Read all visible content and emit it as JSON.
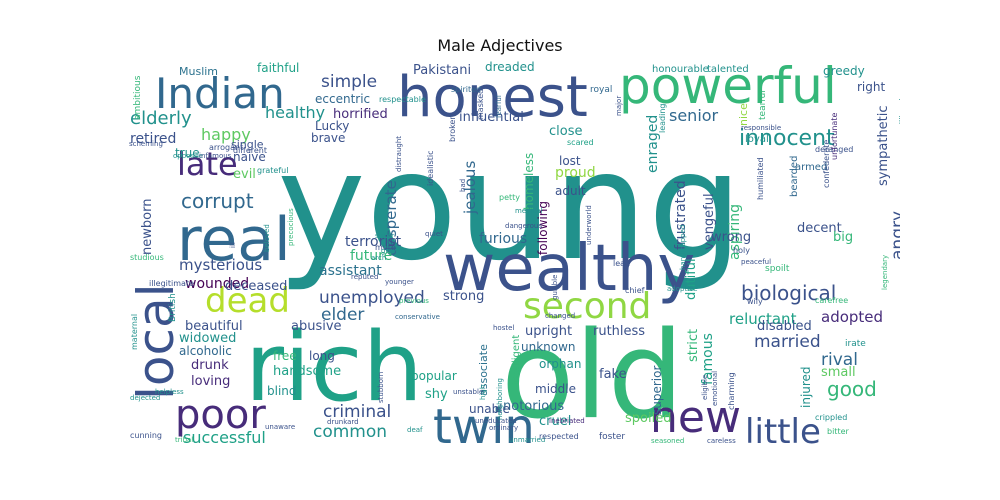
{
  "title": "Male Adjectives",
  "palette": {
    "dark_purple": "#440154",
    "purple": "#472c7a",
    "indigo": "#3b528b",
    "blue": "#31688e",
    "teal_blue": "#2c728e",
    "teal": "#21918c",
    "sea_green": "#1fa187",
    "green": "#35b779",
    "light_green": "#5ec962",
    "lime": "#90d743",
    "yellow_green": "#b5de2b"
  },
  "words": [
    {
      "text": "young",
      "color": "teal"
    },
    {
      "text": "old",
      "color": "green"
    },
    {
      "text": "rich",
      "color": "sea_green"
    },
    {
      "text": "wealthy",
      "color": "indigo"
    },
    {
      "text": "honest",
      "color": "indigo"
    },
    {
      "text": "powerful",
      "color": "green"
    },
    {
      "text": "real",
      "color": "blue"
    },
    {
      "text": "Indian",
      "color": "blue"
    },
    {
      "text": "local",
      "color": "indigo"
    },
    {
      "text": "twin",
      "color": "blue"
    },
    {
      "text": "new",
      "color": "purple"
    },
    {
      "text": "poor",
      "color": "purple"
    },
    {
      "text": "second",
      "color": "lime"
    },
    {
      "text": "dead",
      "color": "yellow_green"
    },
    {
      "text": "little",
      "color": "indigo"
    },
    {
      "text": "late",
      "color": "purple"
    },
    {
      "text": "innocent",
      "color": "teal"
    },
    {
      "text": "biological",
      "color": "indigo"
    },
    {
      "text": "elderly",
      "color": "teal"
    },
    {
      "text": "corrupt",
      "color": "blue"
    },
    {
      "text": "unemployed",
      "color": "indigo"
    },
    {
      "text": "criminal",
      "color": "indigo"
    },
    {
      "text": "common",
      "color": "teal"
    },
    {
      "text": "successful",
      "color": "sea_green"
    },
    {
      "text": "married",
      "color": "indigo"
    },
    {
      "text": "good",
      "color": "green"
    },
    {
      "text": "rival",
      "color": "blue"
    },
    {
      "text": "angry",
      "color": "indigo"
    },
    {
      "text": "senior",
      "color": "blue"
    },
    {
      "text": "simple",
      "color": "indigo"
    },
    {
      "text": "healthy",
      "color": "teal"
    },
    {
      "text": "happy",
      "color": "light_green"
    },
    {
      "text": "retired",
      "color": "indigo"
    },
    {
      "text": "elder",
      "color": "blue"
    },
    {
      "text": "desperate",
      "color": "blue"
    },
    {
      "text": "jealous",
      "color": "blue"
    },
    {
      "text": "terrorist",
      "color": "indigo"
    },
    {
      "text": "furious",
      "color": "blue"
    },
    {
      "text": "assistant",
      "color": "teal_blue"
    },
    {
      "text": "mysterious",
      "color": "indigo"
    },
    {
      "text": "future",
      "color": "green"
    },
    {
      "text": "wounded",
      "color": "dark_purple"
    },
    {
      "text": "deceased",
      "color": "indigo"
    },
    {
      "text": "beautiful",
      "color": "indigo"
    },
    {
      "text": "abusive",
      "color": "indigo"
    },
    {
      "text": "strong",
      "color": "indigo"
    },
    {
      "text": "upright",
      "color": "indigo"
    },
    {
      "text": "ruthless",
      "color": "indigo"
    },
    {
      "text": "adopted",
      "color": "purple"
    },
    {
      "text": "reluctant",
      "color": "sea_green"
    },
    {
      "text": "disabled",
      "color": "indigo"
    },
    {
      "text": "famous",
      "color": "sea_green"
    },
    {
      "text": "strict",
      "color": "green"
    },
    {
      "text": "frustrated",
      "color": "indigo"
    },
    {
      "text": "enraged",
      "color": "teal"
    },
    {
      "text": "vengeful",
      "color": "indigo"
    },
    {
      "text": "aspiring",
      "color": "green"
    },
    {
      "text": "dutiful",
      "color": "sea_green"
    },
    {
      "text": "wrong",
      "color": "indigo"
    },
    {
      "text": "decent",
      "color": "indigo"
    },
    {
      "text": "sympathetic",
      "color": "indigo"
    },
    {
      "text": "big",
      "color": "green"
    },
    {
      "text": "small",
      "color": "light_green"
    },
    {
      "text": "notorious",
      "color": "blue"
    },
    {
      "text": "cruel",
      "color": "teal"
    },
    {
      "text": "spoiled",
      "color": "light_green"
    },
    {
      "text": "fake",
      "color": "indigo"
    },
    {
      "text": "shy",
      "color": "sea_green"
    },
    {
      "text": "popular",
      "color": "sea_green"
    },
    {
      "text": "unknown",
      "color": "blue"
    },
    {
      "text": "orphan",
      "color": "teal"
    },
    {
      "text": "middle",
      "color": "indigo"
    },
    {
      "text": "unable",
      "color": "indigo"
    },
    {
      "text": "handsome",
      "color": "sea_green"
    },
    {
      "text": "blind",
      "color": "teal"
    },
    {
      "text": "free",
      "color": "green"
    },
    {
      "text": "long",
      "color": "indigo"
    },
    {
      "text": "loving",
      "color": "purple"
    },
    {
      "text": "drunk",
      "color": "purple"
    },
    {
      "text": "alcoholic",
      "color": "blue"
    },
    {
      "text": "widowed",
      "color": "teal"
    },
    {
      "text": "lost",
      "color": "indigo"
    },
    {
      "text": "proud",
      "color": "lime"
    },
    {
      "text": "adult",
      "color": "indigo"
    },
    {
      "text": "close",
      "color": "teal"
    },
    {
      "text": "homeless",
      "color": "green"
    },
    {
      "text": "following",
      "color": "dark_purple"
    },
    {
      "text": "influential",
      "color": "indigo"
    },
    {
      "text": "horrified",
      "color": "purple"
    },
    {
      "text": "eccentric",
      "color": "blue"
    },
    {
      "text": "Pakistani",
      "color": "indigo"
    },
    {
      "text": "dreaded",
      "color": "teal"
    },
    {
      "text": "faithful",
      "color": "sea_green"
    },
    {
      "text": "Muslim",
      "color": "teal_blue"
    },
    {
      "text": "brave",
      "color": "indigo"
    },
    {
      "text": "Lucky",
      "color": "indigo"
    },
    {
      "text": "naive",
      "color": "indigo"
    },
    {
      "text": "evil",
      "color": "light_green"
    },
    {
      "text": "newborn",
      "color": "indigo"
    },
    {
      "text": "true",
      "color": "teal"
    },
    {
      "text": "single",
      "color": "indigo"
    },
    {
      "text": "greedy",
      "color": "teal"
    },
    {
      "text": "right",
      "color": "indigo"
    },
    {
      "text": "nice",
      "color": "lime"
    },
    {
      "text": "injured",
      "color": "teal"
    },
    {
      "text": "superior",
      "color": "blue"
    },
    {
      "text": "associate",
      "color": "teal_blue"
    },
    {
      "text": "intelligent",
      "color": "green"
    },
    {
      "text": "honourable",
      "color": "teal"
    },
    {
      "text": "talented",
      "color": "teal"
    },
    {
      "text": "royal",
      "color": "blue"
    },
    {
      "text": "major",
      "color": "indigo"
    },
    {
      "text": "tearful",
      "color": "green"
    },
    {
      "text": "loyal",
      "color": "teal"
    },
    {
      "text": "armed",
      "color": "blue"
    },
    {
      "text": "bearded",
      "color": "blue"
    },
    {
      "text": "deranged",
      "color": "indigo"
    },
    {
      "text": "confederate",
      "color": "indigo"
    },
    {
      "text": "unfortunate",
      "color": "purple"
    },
    {
      "text": "millionaire",
      "color": "teal"
    },
    {
      "text": "renowned",
      "color": "green"
    },
    {
      "text": "responsible",
      "color": "indigo"
    },
    {
      "text": "humiliated",
      "color": "indigo"
    },
    {
      "text": "leading",
      "color": "teal"
    },
    {
      "text": "scared",
      "color": "sea_green"
    },
    {
      "text": "spirited",
      "color": "blue"
    },
    {
      "text": "ambitious",
      "color": "green"
    },
    {
      "text": "scheming",
      "color": "indigo"
    },
    {
      "text": "arrogant",
      "color": "indigo"
    },
    {
      "text": "British",
      "color": "teal"
    },
    {
      "text": "grateful",
      "color": "teal"
    },
    {
      "text": "opposite",
      "color": "teal"
    },
    {
      "text": "infamous",
      "color": "indigo"
    },
    {
      "text": "different",
      "color": "indigo"
    },
    {
      "text": "respectable",
      "color": "teal"
    },
    {
      "text": "distraught",
      "color": "indigo"
    },
    {
      "text": "fearful",
      "color": "blue"
    },
    {
      "text": "masked",
      "color": "indigo"
    },
    {
      "text": "broken",
      "color": "indigo"
    },
    {
      "text": "idealistic",
      "color": "indigo"
    },
    {
      "text": "bad",
      "color": "indigo"
    },
    {
      "text": "petty",
      "color": "green"
    },
    {
      "text": "medical",
      "color": "teal"
    },
    {
      "text": "dangerous",
      "color": "indigo"
    },
    {
      "text": "underworld",
      "color": "indigo"
    },
    {
      "text": "handicapped",
      "color": "teal"
    },
    {
      "text": "gullible",
      "color": "indigo"
    },
    {
      "text": "lead",
      "color": "indigo"
    },
    {
      "text": "chief",
      "color": "indigo"
    },
    {
      "text": "adoptive",
      "color": "teal"
    },
    {
      "text": "holy",
      "color": "indigo"
    },
    {
      "text": "peaceful",
      "color": "indigo"
    },
    {
      "text": "spoilt",
      "color": "green"
    },
    {
      "text": "wily",
      "color": "indigo"
    },
    {
      "text": "carefree",
      "color": "green"
    },
    {
      "text": "irate",
      "color": "teal"
    },
    {
      "text": "legendary",
      "color": "green"
    },
    {
      "text": "mute",
      "color": "indigo"
    },
    {
      "text": "sister",
      "color": "teal"
    },
    {
      "text": "arch",
      "color": "teal"
    },
    {
      "text": "grown",
      "color": "teal"
    },
    {
      "text": "quiet",
      "color": "indigo"
    },
    {
      "text": "reputed",
      "color": "indigo"
    },
    {
      "text": "younger",
      "color": "indigo"
    },
    {
      "text": "previous",
      "color": "green"
    },
    {
      "text": "conservative",
      "color": "blue"
    },
    {
      "text": "hostel",
      "color": "indigo"
    },
    {
      "text": "changed",
      "color": "indigo"
    },
    {
      "text": "inebriated",
      "color": "purple"
    },
    {
      "text": "unmarried",
      "color": "teal"
    },
    {
      "text": "uneducated",
      "color": "indigo"
    },
    {
      "text": "ordinary",
      "color": "indigo"
    },
    {
      "text": "high",
      "color": "teal"
    },
    {
      "text": "neighboring",
      "color": "teal"
    },
    {
      "text": "eligible",
      "color": "indigo"
    },
    {
      "text": "emotional",
      "color": "indigo"
    },
    {
      "text": "charming",
      "color": "indigo"
    },
    {
      "text": "crippled",
      "color": "teal"
    },
    {
      "text": "bitter",
      "color": "green"
    },
    {
      "text": "stubborn",
      "color": "indigo"
    },
    {
      "text": "drunkard",
      "color": "indigo"
    },
    {
      "text": "unaware",
      "color": "indigo"
    },
    {
      "text": "deaf",
      "color": "teal"
    },
    {
      "text": "respected",
      "color": "indigo"
    },
    {
      "text": "foster",
      "color": "indigo"
    },
    {
      "text": "seasoned",
      "color": "green"
    },
    {
      "text": "careless",
      "color": "indigo"
    },
    {
      "text": "cunning",
      "color": "indigo"
    },
    {
      "text": "tribal",
      "color": "green"
    },
    {
      "text": "helpless",
      "color": "teal"
    },
    {
      "text": "dejected",
      "color": "teal"
    },
    {
      "text": "maternal",
      "color": "teal"
    },
    {
      "text": "illegitimate",
      "color": "indigo"
    },
    {
      "text": "studious",
      "color": "green"
    },
    {
      "text": "ill",
      "color": "indigo"
    },
    {
      "text": "beloved",
      "color": "teal"
    },
    {
      "text": "precocious",
      "color": "green"
    },
    {
      "text": "unstable",
      "color": "indigo"
    }
  ]
}
